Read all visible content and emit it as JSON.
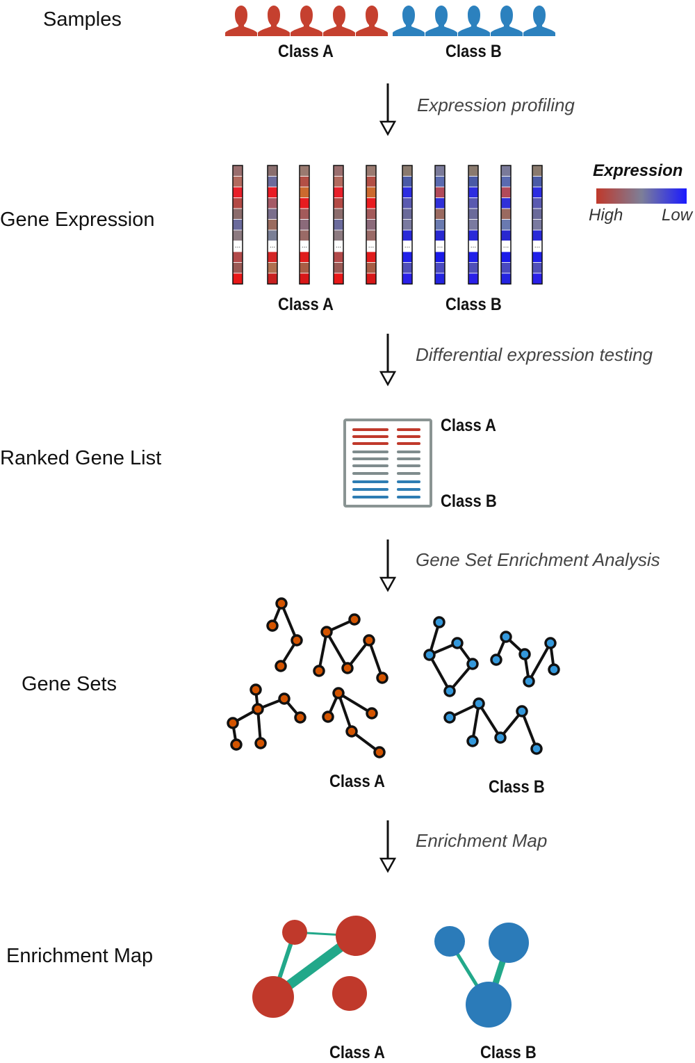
{
  "stages": {
    "samples": "Samples",
    "gene_expression": "Gene Expression",
    "ranked_gene_list": "Ranked Gene List",
    "gene_sets": "Gene Sets",
    "enrichment_map": "Enrichment Map"
  },
  "steps": {
    "expression_profiling": "Expression profiling",
    "differential_testing": "Differential expression testing",
    "gsea": "Gene Set Enrichment Analysis",
    "enrichment_map": "Enrichment Map"
  },
  "class_labels": {
    "samples_a": "Class A",
    "samples_b": "Class B",
    "expression_a": "Class A",
    "expression_b": "Class B",
    "ranked_a": "Class A",
    "ranked_b": "Class B",
    "genesets_a": "Class A",
    "genesets_b": "Class B",
    "map_a": "Class A",
    "map_b": "Class B"
  },
  "legend": {
    "title": "Expression",
    "high": "High",
    "low": "Low"
  },
  "ellipsis": "...",
  "colors": {
    "class_a": "#c0392b",
    "class_b": "#2b7bb9",
    "neutral": "#7f8c8d",
    "edge": "#22a88a",
    "node_a": "#d35400",
    "node_b": "#3498db"
  },
  "icons": {
    "person": "person-silhouette-icon",
    "arrow": "down-arrow-icon",
    "list": "ranked-list-icon"
  }
}
